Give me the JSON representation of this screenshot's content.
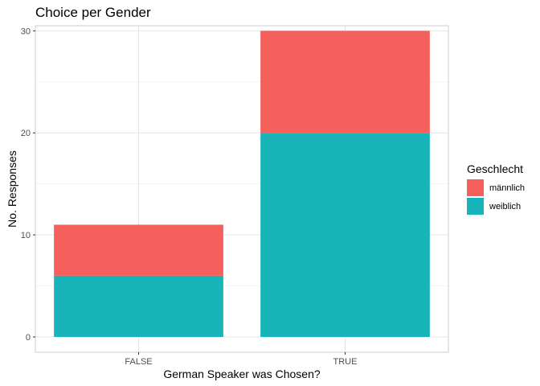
{
  "chart_data": {
    "type": "bar",
    "stacked": true,
    "title": "Choice per Gender",
    "xlabel": "German Speaker was Chosen?",
    "ylabel": "No. Responses",
    "categories": [
      "FALSE",
      "TRUE"
    ],
    "series": [
      {
        "name": "weiblich",
        "values": [
          6,
          20
        ],
        "color": "#19b4b9"
      },
      {
        "name": "männlich",
        "values": [
          5,
          10
        ],
        "color": "#f5605d"
      }
    ],
    "ylim": [
      0,
      30.5
    ],
    "yticks": [
      0,
      10,
      20,
      30
    ],
    "grid": true,
    "legend": {
      "title": "Geschlecht",
      "position": "right",
      "entries": [
        "männlich",
        "weiblich"
      ]
    }
  }
}
